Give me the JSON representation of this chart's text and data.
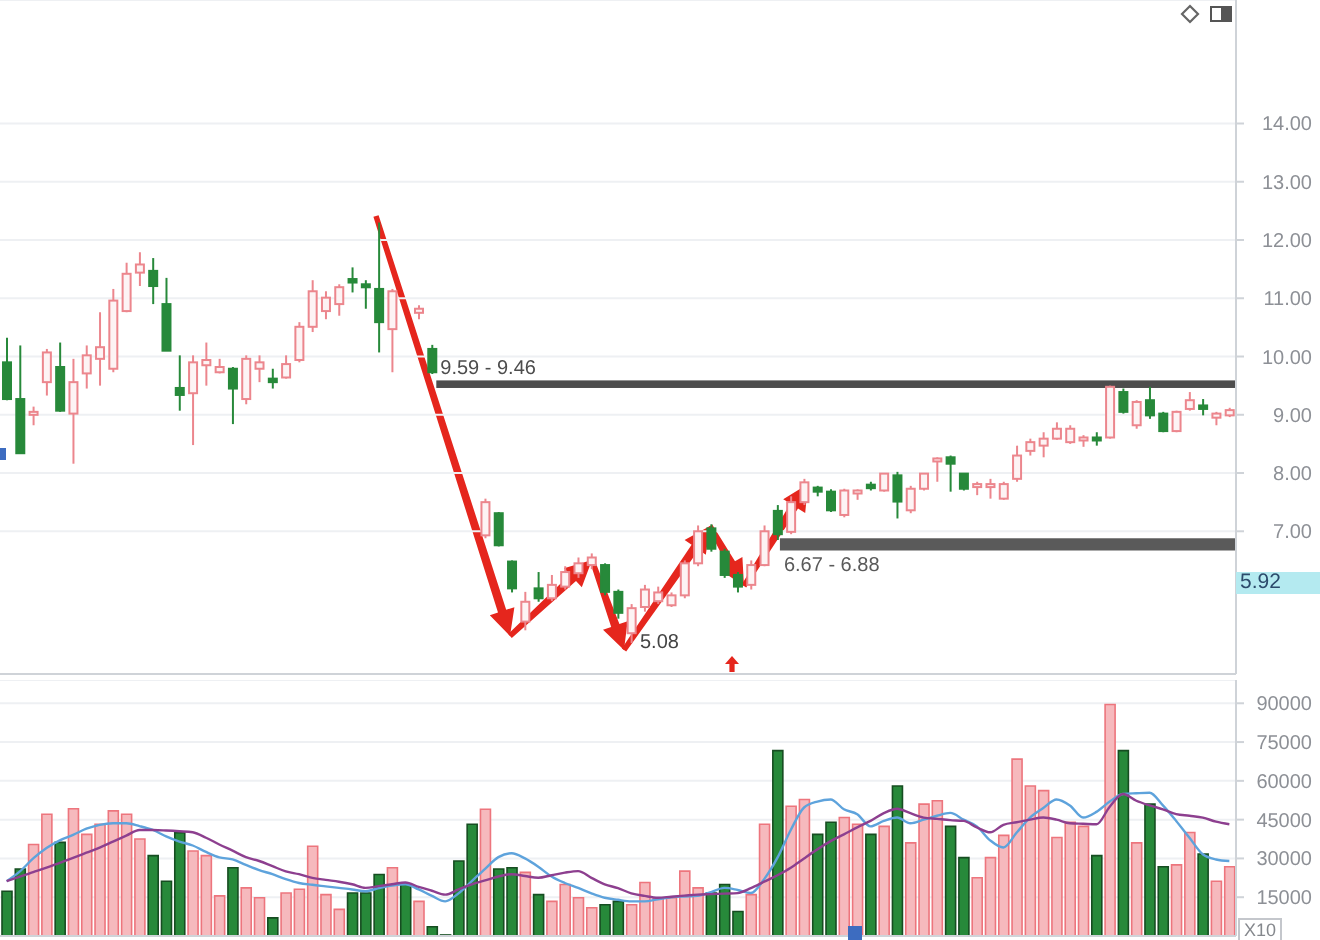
{
  "chart_data": [
    {
      "type": "candlestick",
      "categories": [
        null,
        null,
        null,
        null,
        null,
        null,
        null,
        null,
        null,
        null,
        null,
        null,
        null,
        null,
        null,
        null,
        null,
        null,
        null,
        null,
        null,
        null,
        null,
        null,
        null,
        null,
        null,
        null,
        null,
        null,
        null,
        null,
        null,
        null,
        null,
        null,
        null,
        null,
        null,
        null,
        null,
        null,
        null,
        null,
        null,
        null,
        null,
        null,
        null,
        null,
        null,
        null,
        null,
        null,
        null,
        null,
        null,
        null,
        null,
        null,
        null,
        null,
        null,
        null,
        null,
        null,
        null,
        null,
        null,
        null,
        null,
        null,
        null,
        null,
        null,
        null,
        null,
        null,
        null,
        null,
        null,
        null,
        null,
        null,
        null,
        null,
        null,
        null,
        null,
        null,
        null,
        null,
        null
      ],
      "ohlc": [
        [
          9.9,
          10.32,
          9.25,
          9.27
        ],
        [
          9.27,
          10.19,
          8.34,
          8.34
        ],
        [
          9.0,
          9.14,
          8.82,
          9.05
        ],
        [
          9.56,
          10.13,
          9.33,
          10.07
        ],
        [
          9.82,
          10.24,
          9.05,
          9.07
        ],
        [
          9.02,
          9.96,
          8.16,
          9.56
        ],
        [
          9.71,
          10.19,
          9.45,
          10.02
        ],
        [
          9.96,
          10.76,
          9.5,
          10.16
        ],
        [
          9.79,
          11.16,
          9.73,
          10.96
        ],
        [
          10.78,
          11.61,
          10.76,
          11.42
        ],
        [
          11.44,
          11.79,
          11.21,
          11.58
        ],
        [
          11.47,
          11.69,
          10.9,
          11.21
        ],
        [
          10.9,
          11.35,
          10.1,
          10.1
        ],
        [
          9.46,
          10.02,
          9.07,
          9.34
        ],
        [
          9.37,
          10.02,
          8.48,
          9.9
        ],
        [
          9.85,
          10.24,
          9.5,
          9.94
        ],
        [
          9.73,
          9.96,
          9.71,
          9.82
        ],
        [
          9.79,
          9.82,
          8.84,
          9.45
        ],
        [
          9.27,
          10.02,
          9.18,
          9.96
        ],
        [
          9.79,
          10.02,
          9.56,
          9.9
        ],
        [
          9.62,
          9.79,
          9.45,
          9.56
        ],
        [
          9.64,
          10.02,
          9.62,
          9.87
        ],
        [
          9.94,
          10.59,
          9.9,
          10.51
        ],
        [
          10.51,
          11.31,
          10.42,
          11.12
        ],
        [
          10.78,
          11.12,
          10.64,
          11.01
        ],
        [
          10.9,
          11.24,
          10.7,
          11.19
        ],
        [
          11.33,
          11.53,
          11.1,
          11.27
        ],
        [
          11.24,
          11.31,
          10.82,
          11.19
        ],
        [
          11.16,
          12.3,
          10.07,
          10.59
        ],
        [
          10.47,
          11.16,
          9.73,
          11.12
        ],
        null,
        [
          10.75,
          10.88,
          10.64,
          10.82
        ],
        [
          10.13,
          10.2,
          9.7,
          9.73
        ],
        null,
        null,
        null,
        [
          6.93,
          7.56,
          6.88,
          7.5
        ],
        [
          7.31,
          7.33,
          6.74,
          6.76
        ],
        [
          6.48,
          6.5,
          5.95,
          6.02
        ],
        [
          5.45,
          5.96,
          5.3,
          5.79
        ],
        [
          6.02,
          6.3,
          5.79,
          5.85
        ],
        [
          5.85,
          6.25,
          5.8,
          6.08
        ],
        [
          6.05,
          6.4,
          6.0,
          6.3
        ],
        [
          6.28,
          6.55,
          6.2,
          6.45
        ],
        [
          6.42,
          6.62,
          6.35,
          6.55
        ],
        [
          6.42,
          6.45,
          5.9,
          5.96
        ],
        [
          5.96,
          6.0,
          5.5,
          5.6
        ],
        [
          5.25,
          5.75,
          5.08,
          5.68
        ],
        [
          5.7,
          6.08,
          5.62,
          6.0
        ],
        [
          5.8,
          6.05,
          5.75,
          5.95
        ],
        [
          5.73,
          5.95,
          5.7,
          5.9
        ],
        [
          5.9,
          6.5,
          5.85,
          6.45
        ],
        [
          6.45,
          7.1,
          6.4,
          7.0
        ],
        [
          7.05,
          7.12,
          6.65,
          6.7
        ],
        [
          6.65,
          6.7,
          6.2,
          6.25
        ],
        [
          6.25,
          6.3,
          5.95,
          6.05
        ],
        [
          6.08,
          6.5,
          6.0,
          6.42
        ],
        [
          6.42,
          7.1,
          6.4,
          7.0
        ],
        [
          7.35,
          7.45,
          6.85,
          6.95
        ],
        [
          6.99,
          7.6,
          6.95,
          7.5
        ],
        [
          7.5,
          7.9,
          7.45,
          7.84
        ],
        [
          7.75,
          7.78,
          7.6,
          7.68
        ],
        [
          7.68,
          7.72,
          7.33,
          7.36
        ],
        [
          7.28,
          7.73,
          7.24,
          7.7
        ],
        [
          7.68,
          7.72,
          7.54,
          7.7
        ],
        [
          7.8,
          7.85,
          7.7,
          7.74
        ],
        [
          7.7,
          8.0,
          7.68,
          7.99
        ],
        [
          7.96,
          8.02,
          7.22,
          7.51
        ],
        [
          7.36,
          7.78,
          7.31,
          7.73
        ],
        [
          7.73,
          8.0,
          7.7,
          7.99
        ],
        [
          8.21,
          8.27,
          7.85,
          8.25
        ],
        [
          8.27,
          8.3,
          7.68,
          8.16
        ],
        [
          7.99,
          8.0,
          7.7,
          7.73
        ],
        [
          7.79,
          7.85,
          7.62,
          7.81
        ],
        [
          7.78,
          7.9,
          7.56,
          7.81
        ],
        [
          7.56,
          7.85,
          7.54,
          7.81
        ],
        [
          7.9,
          8.47,
          7.85,
          8.3
        ],
        [
          8.38,
          8.59,
          8.3,
          8.53
        ],
        [
          8.47,
          8.7,
          8.27,
          8.59
        ],
        [
          8.59,
          8.87,
          8.57,
          8.76
        ],
        [
          8.53,
          8.82,
          8.5,
          8.76
        ],
        [
          8.59,
          8.65,
          8.45,
          8.61
        ],
        [
          8.61,
          8.7,
          8.47,
          8.59
        ],
        [
          8.61,
          9.5,
          8.59,
          9.48
        ],
        [
          9.39,
          9.45,
          9.02,
          9.05
        ],
        [
          8.82,
          9.25,
          8.76,
          9.22
        ],
        [
          9.25,
          9.48,
          8.93,
          8.99
        ],
        [
          9.02,
          9.05,
          8.7,
          8.72
        ],
        [
          8.72,
          9.07,
          8.7,
          9.05
        ],
        [
          9.1,
          9.39,
          9.07,
          9.25
        ],
        [
          9.16,
          9.27,
          8.99,
          9.1
        ],
        [
          8.95,
          9.05,
          8.82,
          9.02
        ],
        [
          8.99,
          9.12,
          8.96,
          9.08
        ]
      ],
      "colors": [
        "#27893a",
        "#27893a",
        "#ec868d",
        "#ec868d",
        "#27893a",
        "#ec868d",
        "#ec868d",
        "#ec868d",
        "#ec868d",
        "#ec868d",
        "#ec868d",
        "#27893a",
        "#27893a",
        "#27893a",
        "#ec868d",
        "#ec868d",
        "#ec868d",
        "#27893a",
        "#ec868d",
        "#ec868d",
        "#27893a",
        "#ec868d",
        "#ec868d",
        "#ec868d",
        "#ec868d",
        "#ec868d",
        "#27893a",
        "#27893a",
        "#27893a",
        "#ec868d",
        null,
        "#ec868d",
        "#27893a",
        null,
        null,
        null,
        "#ec868d",
        "#27893a",
        "#27893a",
        "#ec868d",
        "#27893a",
        "#ec868d",
        "#ec868d",
        "#ec868d",
        "#ec868d",
        "#27893a",
        "#27893a",
        "#ec868d",
        "#ec868d",
        "#ec868d",
        "#ec868d",
        "#ec868d",
        "#ec868d",
        "#27893a",
        "#27893a",
        "#27893a",
        "#ec868d",
        "#ec868d",
        "#27893a",
        "#ec868d",
        "#ec868d",
        "#27893a",
        "#27893a",
        "#ec868d",
        "#ec868d",
        "#27893a",
        "#ec868d",
        "#27893a",
        "#ec868d",
        "#ec868d",
        "#ec868d",
        "#27893a",
        "#27893a",
        "#ec868d",
        "#ec868d",
        "#ec868d",
        "#ec868d",
        "#ec868d",
        "#ec868d",
        "#ec868d",
        "#ec868d",
        "#ec868d",
        "#27893a",
        "#ec868d",
        "#27893a",
        "#ec868d",
        "#27893a",
        "#27893a",
        "#ec868d",
        "#ec868d",
        "#27893a",
        "#ec868d",
        "#ec868d"
      ],
      "ylim": [
        4.55,
        16.12
      ],
      "yticks": [
        {
          "value": 7,
          "label": "7.00"
        },
        {
          "value": 8,
          "label": "8.00"
        },
        {
          "value": 9,
          "label": "9.00"
        },
        {
          "value": 10,
          "label": "10.00"
        },
        {
          "value": 11,
          "label": "11.00"
        },
        {
          "value": 12,
          "label": "12.00"
        },
        {
          "value": 13,
          "label": "13.00"
        },
        {
          "value": 14,
          "label": "14.00"
        }
      ],
      "grid": "y",
      "tick_labels": "y",
      "bands": [
        {
          "axis": "y",
          "from": 9.46,
          "to": 9.59,
          "label": "9.59 - 9.46",
          "color": "#4d4d4d"
        },
        {
          "axis": "y",
          "from": 6.67,
          "to": 6.88,
          "label": "6.67 - 6.88",
          "color": "#5a5a5a"
        }
      ],
      "annotations": [
        "5.08",
        "5.92"
      ]
    },
    {
      "type": "bar",
      "categories": [
        null,
        null,
        null,
        null,
        null,
        null,
        null,
        null,
        null,
        null,
        null,
        null,
        null,
        null,
        null,
        null,
        null,
        null,
        null,
        null,
        null,
        null,
        null,
        null,
        null,
        null,
        null,
        null,
        null,
        null,
        null,
        null,
        null,
        null,
        null,
        null,
        null,
        null,
        null,
        null,
        null,
        null,
        null,
        null,
        null,
        null,
        null,
        null,
        null,
        null,
        null,
        null,
        null,
        null,
        null,
        null,
        null,
        null,
        null,
        null,
        null,
        null,
        null,
        null,
        null,
        null,
        null,
        null,
        null,
        null,
        null,
        null,
        null,
        null,
        null,
        null,
        null,
        null,
        null,
        null,
        null,
        null,
        null,
        null,
        null,
        null,
        null,
        null,
        null,
        null,
        null,
        null,
        null
      ],
      "series": [
        {
          "type": "bar",
          "colors": [
            "#27893a",
            "#27893a",
            "#f6b9bd",
            "#f6b9bd",
            "#27893a",
            "#f6b9bd",
            "#f6b9bd",
            "#f6b9bd",
            "#f6b9bd",
            "#f6b9bd",
            "#f6b9bd",
            "#27893a",
            "#27893a",
            "#27893a",
            "#f6b9bd",
            "#f6b9bd",
            "#f6b9bd",
            "#27893a",
            "#f6b9bd",
            "#f6b9bd",
            "#27893a",
            "#f6b9bd",
            "#f6b9bd",
            "#f6b9bd",
            "#f6b9bd",
            "#f6b9bd",
            "#27893a",
            "#27893a",
            "#27893a",
            "#f6b9bd",
            "#27893a",
            "#f6b9bd",
            "#27893a",
            "#27893a",
            "#27893a",
            "#27893a",
            "#f6b9bd",
            "#27893a",
            "#27893a",
            "#f6b9bd",
            "#27893a",
            "#f6b9bd",
            "#f6b9bd",
            "#f6b9bd",
            "#f6b9bd",
            "#27893a",
            "#27893a",
            "#f6b9bd",
            "#f6b9bd",
            "#f6b9bd",
            "#f6b9bd",
            "#f6b9bd",
            "#f6b9bd",
            "#27893a",
            "#27893a",
            "#27893a",
            "#f6b9bd",
            "#f6b9bd",
            "#27893a",
            "#f6b9bd",
            "#f6b9bd",
            "#27893a",
            "#27893a",
            "#f6b9bd",
            "#f6b9bd",
            "#27893a",
            "#f6b9bd",
            "#27893a",
            "#f6b9bd",
            "#f6b9bd",
            "#f6b9bd",
            "#27893a",
            "#27893a",
            "#f6b9bd",
            "#f6b9bd",
            "#f6b9bd",
            "#f6b9bd",
            "#f6b9bd",
            "#f6b9bd",
            "#f6b9bd",
            "#f6b9bd",
            "#f6b9bd",
            "#27893a",
            "#f6b9bd",
            "#27893a",
            "#f6b9bd",
            "#27893a",
            "#27893a",
            "#f6b9bd",
            "#f6b9bd",
            "#27893a",
            "#f6b9bd",
            "#f6b9bd"
          ],
          "values": [
            17300,
            25900,
            35400,
            47100,
            36200,
            49200,
            39300,
            43200,
            48400,
            47100,
            37500,
            31100,
            21200,
            39900,
            32900,
            31100,
            15500,
            26400,
            18600,
            14800,
            7000,
            16600,
            18100,
            34700,
            16000,
            10300,
            16600,
            16600,
            23800,
            26400,
            19900,
            13400,
            3600,
            400,
            29000,
            43200,
            49000,
            25900,
            26400,
            24600,
            16000,
            13400,
            19900,
            14800,
            10900,
            12100,
            13400,
            12100,
            20700,
            14800,
            14800,
            25100,
            18600,
            16600,
            19900,
            9500,
            16000,
            43200,
            71700,
            50200,
            52800,
            39300,
            44000,
            45800,
            43200,
            39300,
            42400,
            58000,
            36000,
            51000,
            52300,
            42400,
            30300,
            22500,
            30300,
            38900,
            68400,
            58000,
            56200,
            38100,
            44000,
            42400,
            31100,
            89500,
            71700,
            36000,
            51000,
            26800,
            27500,
            40000,
            31700,
            21200,
            26800
          ]
        },
        {
          "type": "line",
          "color": "#5ea3dc",
          "values": [
            21200,
            25000,
            30000,
            34000,
            37000,
            39100,
            41500,
            43000,
            43600,
            43600,
            42500,
            41000,
            38500,
            36500,
            35000,
            32500,
            30400,
            29600,
            27500,
            25500,
            23900,
            22000,
            20500,
            19800,
            19200,
            18600,
            18000,
            17300,
            18500,
            19500,
            20000,
            18000,
            15500,
            13400,
            16500,
            21200,
            26000,
            30500,
            32000,
            30000,
            26800,
            23000,
            20500,
            18600,
            16500,
            14800,
            14000,
            13400,
            13400,
            14200,
            15000,
            15300,
            15500,
            17000,
            18600,
            17800,
            16600,
            22000,
            30300,
            41000,
            49700,
            52000,
            52800,
            49000,
            47100,
            42400,
            44500,
            45800,
            43600,
            45000,
            46500,
            47600,
            45000,
            42400,
            37000,
            34200,
            40000,
            45800,
            49500,
            52800,
            50500,
            45800,
            48000,
            52000,
            54900,
            55200,
            55400,
            50500,
            44500,
            38000,
            31600,
            29600,
            29000
          ]
        },
        {
          "type": "line",
          "color": "#8d3f8f",
          "values": [
            21200,
            23000,
            24700,
            26400,
            28300,
            30200,
            32200,
            34200,
            36500,
            38800,
            41000,
            41000,
            40800,
            40500,
            40100,
            38000,
            35400,
            33000,
            30500,
            29000,
            27000,
            25000,
            23900,
            22500,
            21700,
            21000,
            20000,
            18600,
            19300,
            20000,
            20700,
            19000,
            17500,
            16000,
            18000,
            20000,
            21500,
            23000,
            23900,
            23200,
            22500,
            23500,
            24500,
            25100,
            22500,
            20000,
            18500,
            16500,
            15500,
            14800,
            15200,
            15600,
            16000,
            16200,
            16400,
            16600,
            18500,
            21000,
            23500,
            26400,
            30000,
            33500,
            36700,
            39300,
            42000,
            44500,
            47500,
            49200,
            47500,
            45800,
            45300,
            44800,
            44500,
            42000,
            40100,
            43000,
            44000,
            45000,
            45800,
            45000,
            43600,
            43400,
            43200,
            50000,
            54900,
            52300,
            50500,
            49000,
            47100,
            46500,
            45800,
            44200,
            43200
          ]
        }
      ],
      "ylim": [
        0,
        99000
      ],
      "yticks": [
        15000,
        30000,
        45000,
        60000,
        75000,
        90000
      ],
      "ylabel": "X10",
      "grid": "y",
      "tick_labels": "y"
    }
  ]
}
